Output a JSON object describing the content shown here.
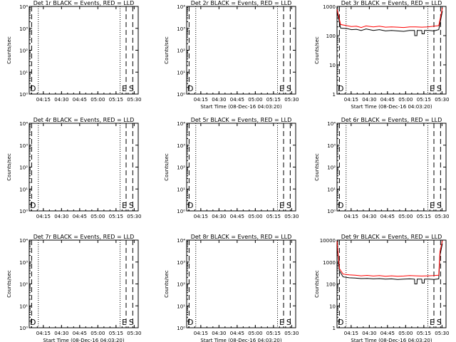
{
  "chart_data": [
    {
      "type": "line",
      "title": "Det 1r BLACK = Events, RED = LLD",
      "ylabel": "Counts/sec",
      "xlabel": "",
      "scale": "log-sci",
      "ymin_exp": 0,
      "ymax_exp": 4,
      "ytick_labels": [
        "10⁰",
        "10¹",
        "10²",
        "10³",
        "10⁴"
      ],
      "xtick_labels": [
        "04:15",
        "04:30",
        "04:45",
        "05:00",
        "05:15",
        "05:30"
      ],
      "markers": [
        "D",
        "E",
        "S"
      ],
      "series": []
    },
    {
      "type": "line",
      "title": "Det 2r BLACK = Events, RED = LLD",
      "ylabel": "Counts/sec",
      "xlabel": "Start Time (08-Dec-16 04:03:20)",
      "scale": "log-sci",
      "ymin_exp": 0,
      "ymax_exp": 4,
      "ytick_labels": [
        "10⁰",
        "10¹",
        "10²",
        "10³",
        "10⁴"
      ],
      "xtick_labels": [
        "04:15",
        "04:30",
        "04:45",
        "05:00",
        "05:15",
        "05:30"
      ],
      "markers": [
        "D",
        "E",
        "S"
      ],
      "series": []
    },
    {
      "type": "line",
      "title": "Det 3r BLACK = Events, RED = LLD",
      "ylabel": "Counts/sec",
      "xlabel": "Start Time (08-Dec-16 04:03:20)",
      "scale": "log",
      "ymin": 1,
      "ymax": 1000,
      "ytick_labels": [
        "1",
        "10",
        "100",
        "1000"
      ],
      "xtick_labels": [
        "04:15",
        "04:30",
        "04:45",
        "05:00",
        "05:15",
        "05:30"
      ],
      "markers": [
        "D",
        "E",
        "S"
      ],
      "series": [
        {
          "color": "#000000",
          "x": [
            0,
            3,
            8,
            12,
            16,
            20,
            24,
            30,
            35,
            40,
            45,
            50,
            55,
            60,
            64,
            64.2,
            66,
            66.2,
            70,
            70.2,
            72,
            72.2,
            76,
            80,
            84,
            87
          ],
          "y": [
            700,
            180,
            175,
            160,
            165,
            150,
            170,
            150,
            160,
            145,
            150,
            145,
            140,
            150,
            150,
            100,
            100,
            150,
            150,
            115,
            115,
            150,
            150,
            145,
            160,
            700
          ]
        },
        {
          "color": "#ff0000",
          "x": [
            0,
            3,
            8,
            12,
            16,
            20,
            24,
            30,
            35,
            40,
            45,
            50,
            55,
            60,
            65,
            70,
            75,
            80,
            84,
            87
          ],
          "y": [
            800,
            240,
            220,
            205,
            210,
            190,
            215,
            200,
            210,
            195,
            200,
            195,
            190,
            200,
            200,
            195,
            200,
            210,
            220,
            900
          ]
        }
      ]
    },
    {
      "type": "line",
      "title": "Det 4r BLACK = Events, RED = LLD",
      "ylabel": "Counts/sec",
      "xlabel": "",
      "scale": "log-sci",
      "ymin_exp": 0,
      "ymax_exp": 4,
      "ytick_labels": [
        "10⁰",
        "10¹",
        "10²",
        "10³",
        "10⁴"
      ],
      "xtick_labels": [
        "04:15",
        "04:30",
        "04:45",
        "05:00",
        "05:15",
        "05:30"
      ],
      "markers": [
        "D",
        "E",
        "S"
      ],
      "series": []
    },
    {
      "type": "line",
      "title": "Det 5r BLACK = Events, RED = LLD",
      "ylabel": "Counts/sec",
      "xlabel": "",
      "scale": "log-sci",
      "ymin_exp": 0,
      "ymax_exp": 4,
      "ytick_labels": [
        "10⁰",
        "10¹",
        "10²",
        "10³",
        "10⁴"
      ],
      "xtick_labels": [
        "04:15",
        "04:30",
        "04:45",
        "05:00",
        "05:15",
        "05:30"
      ],
      "markers": [
        "D",
        "E",
        "S"
      ],
      "series": []
    },
    {
      "type": "line",
      "title": "Det 6r BLACK = Events, RED = LLD",
      "ylabel": "Counts/sec",
      "xlabel": "",
      "scale": "log-sci",
      "ymin_exp": 0,
      "ymax_exp": 4,
      "ytick_labels": [
        "10⁰",
        "10¹",
        "10²",
        "10³",
        "10⁴"
      ],
      "xtick_labels": [
        "04:15",
        "04:30",
        "04:45",
        "05:00",
        "05:15",
        "05:30"
      ],
      "markers": [
        "D",
        "E",
        "S"
      ],
      "series": []
    },
    {
      "type": "line",
      "title": "Det 7r BLACK = Events, RED = LLD",
      "ylabel": "Counts/sec",
      "xlabel": "Start Time (08-Dec-16 04:03:20)",
      "scale": "log-sci",
      "ymin_exp": 0,
      "ymax_exp": 4,
      "ytick_labels": [
        "10⁰",
        "10¹",
        "10²",
        "10³",
        "10⁴"
      ],
      "xtick_labels": [
        "04:15",
        "04:30",
        "04:45",
        "05:00",
        "05:15",
        "05:30"
      ],
      "markers": [
        "D",
        "E",
        "S"
      ],
      "series": []
    },
    {
      "type": "line",
      "title": "Det 8r BLACK = Events, RED = LLD",
      "ylabel": "Counts/sec",
      "xlabel": "Start Time (08-Dec-16 04:03:20)",
      "scale": "log-sci",
      "ymin_exp": 0,
      "ymax_exp": 4,
      "ytick_labels": [
        "10⁰",
        "10¹",
        "10²",
        "10³",
        "10⁴"
      ],
      "xtick_labels": [
        "04:15",
        "04:30",
        "04:45",
        "05:00",
        "05:15",
        "05:30"
      ],
      "markers": [
        "D",
        "E",
        "S"
      ],
      "series": []
    },
    {
      "type": "line",
      "title": "Det 9r BLACK = Events, RED = LLD",
      "ylabel": "Counts/sec",
      "xlabel": "Start Time (08-Dec-16 04:03:20)",
      "scale": "log",
      "ymin": 1,
      "ymax": 10000,
      "ytick_labels": [
        "1",
        "10",
        "100",
        "1000",
        "10000"
      ],
      "xtick_labels": [
        "04:15",
        "04:30",
        "04:45",
        "05:00",
        "05:15",
        "05:30"
      ],
      "markers": [
        "D",
        "E",
        "S"
      ],
      "series": [
        {
          "color": "#000000",
          "x": [
            0,
            2,
            5,
            10,
            15,
            20,
            25,
            30,
            35,
            40,
            45,
            50,
            55,
            60,
            64,
            64.2,
            66,
            66.2,
            70,
            70.2,
            72,
            72.2,
            76,
            80,
            84,
            85,
            87
          ],
          "y": [
            6000,
            400,
            210,
            190,
            185,
            175,
            180,
            170,
            175,
            165,
            170,
            160,
            165,
            170,
            165,
            100,
            100,
            165,
            165,
            110,
            110,
            165,
            165,
            160,
            170,
            2000,
            7000
          ]
        },
        {
          "color": "#ff0000",
          "x": [
            0,
            2,
            5,
            10,
            15,
            20,
            25,
            30,
            35,
            40,
            45,
            50,
            55,
            60,
            65,
            70,
            75,
            80,
            84,
            85,
            87
          ],
          "y": [
            9000,
            500,
            280,
            260,
            250,
            235,
            245,
            230,
            240,
            225,
            235,
            225,
            230,
            240,
            235,
            230,
            235,
            240,
            250,
            3000,
            9500
          ]
        }
      ]
    }
  ]
}
